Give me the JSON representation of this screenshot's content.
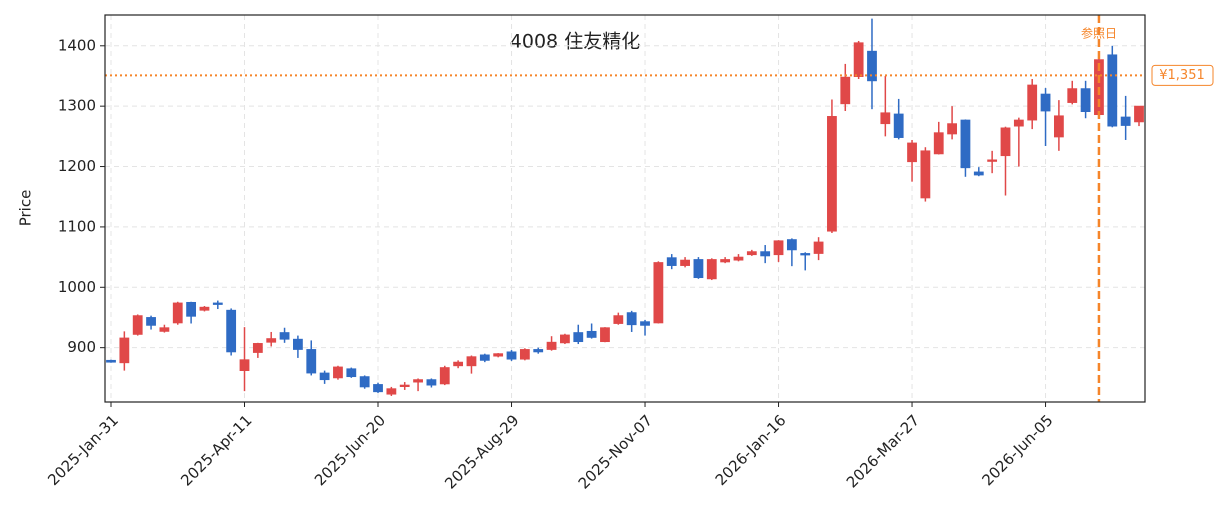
{
  "chart_data": {
    "type": "candlestick",
    "title": "4008  住友精化",
    "y_label": "Price",
    "categories": [
      "2025-Jan-31",
      null,
      null,
      null,
      null,
      null,
      null,
      null,
      null,
      null,
      "2025-Apr-11",
      null,
      null,
      null,
      null,
      null,
      null,
      null,
      null,
      null,
      "2025-Jun-20",
      null,
      null,
      null,
      null,
      null,
      null,
      null,
      null,
      null,
      "2025-Aug-29",
      null,
      null,
      null,
      null,
      null,
      null,
      null,
      null,
      null,
      "2025-Nov-07",
      null,
      null,
      null,
      null,
      null,
      null,
      null,
      null,
      null,
      "2026-Jan-16",
      null,
      null,
      null,
      null,
      null,
      null,
      null,
      null,
      null,
      "2026-Mar-27",
      null,
      null,
      null,
      null,
      null,
      null,
      null,
      null,
      null,
      "2026-Jun-05",
      null,
      null,
      null,
      null,
      null,
      null,
      null
    ],
    "open": [
      879,
      875,
      922,
      950,
      927,
      941,
      975,
      962,
      974,
      962,
      862,
      892,
      909,
      925,
      914,
      897,
      858,
      850,
      865,
      852,
      839,
      823,
      836,
      843,
      847,
      840,
      870,
      870,
      888,
      886,
      893,
      881,
      897,
      897,
      908,
      925,
      927,
      910,
      940,
      958,
      943,
      941,
      1049,
      1036,
      1046,
      1014,
      1042,
      1045,
      1054,
      1059,
      1054,
      1079,
      1056,
      1056,
      1093,
      1304,
      1349,
      1391,
      1271,
      1287,
      1208,
      1148,
      1221,
      1254,
      1277,
      1191,
      1209,
      1218,
      1267,
      1277,
      1320,
      1249,
      1306,
      1329,
      1286,
      1385,
      1282,
      1274
    ],
    "high": [
      880,
      927,
      955,
      953,
      938,
      976,
      976,
      969,
      978,
      965,
      934,
      908,
      926,
      933,
      920,
      912,
      862,
      870,
      867,
      854,
      842,
      835,
      843,
      849,
      849,
      870,
      879,
      887,
      890,
      891,
      896,
      899,
      900,
      919,
      923,
      938,
      940,
      934,
      958,
      961,
      946,
      1043,
      1055,
      1050,
      1050,
      1048,
      1050,
      1055,
      1062,
      1070,
      1078,
      1081,
      1058,
      1083,
      1311,
      1370,
      1408,
      1445,
      1350,
      1312,
      1244,
      1232,
      1274,
      1300,
      1278,
      1199,
      1226,
      1266,
      1281,
      1345,
      1330,
      1310,
      1342,
      1342,
      1380,
      1400,
      1317,
      1300
    ],
    "low": [
      875,
      862,
      920,
      930,
      925,
      938,
      940,
      960,
      964,
      887,
      828,
      883,
      902,
      908,
      883,
      854,
      840,
      847,
      850,
      832,
      825,
      820,
      830,
      828,
      834,
      838,
      866,
      857,
      876,
      884,
      878,
      879,
      890,
      895,
      906,
      906,
      915,
      909,
      938,
      926,
      920,
      940,
      1030,
      1033,
      1014,
      1012,
      1040,
      1043,
      1052,
      1040,
      1042,
      1035,
      1028,
      1045,
      1090,
      1292,
      1345,
      1295,
      1250,
      1245,
      1175,
      1142,
      1220,
      1245,
      1183,
      1184,
      1189,
      1152,
      1200,
      1262,
      1234,
      1226,
      1303,
      1280,
      1282,
      1265,
      1244,
      1267
    ],
    "close": [
      876,
      916,
      953,
      937,
      933,
      974,
      952,
      967,
      972,
      893,
      880,
      907,
      915,
      914,
      897,
      858,
      847,
      868,
      852,
      835,
      827,
      832,
      838,
      847,
      838,
      867,
      876,
      885,
      879,
      890,
      881,
      897,
      893,
      909,
      921,
      910,
      917,
      933,
      953,
      938,
      937,
      1041,
      1036,
      1045,
      1016,
      1046,
      1046,
      1050,
      1059,
      1052,
      1077,
      1062,
      1054,
      1075,
      1283,
      1348,
      1405,
      1342,
      1289,
      1248,
      1239,
      1226,
      1256,
      1271,
      1198,
      1186,
      1211,
      1264,
      1277,
      1335,
      1292,
      1284,
      1329,
      1291,
      1377,
      1267,
      1268,
      1300
    ],
    "up_color": "#e04848",
    "down_color": "#2f6bc4",
    "ylim": [
      810,
      1451
    ],
    "yticks": [
      900,
      1000,
      1100,
      1200,
      1300,
      1400
    ],
    "grid": true,
    "reference_line": {
      "value": 1351,
      "label": "¥1,351",
      "color": "#f5852a"
    },
    "reference_date": {
      "index": 74,
      "label": "参照日",
      "color": "#f5852a"
    }
  }
}
